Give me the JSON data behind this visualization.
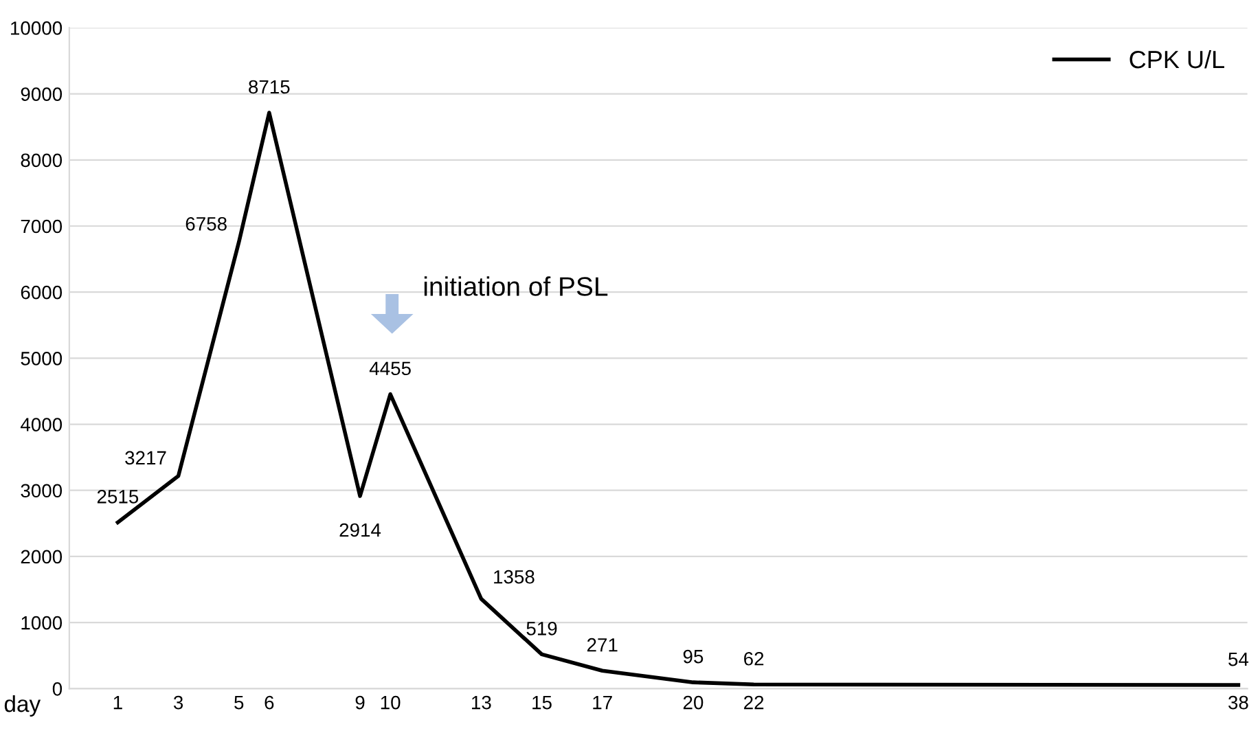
{
  "chart_data": {
    "type": "line",
    "xlabel": "day",
    "x": [
      1,
      3,
      5,
      6,
      9,
      10,
      13,
      15,
      17,
      20,
      22,
      38
    ],
    "series": [
      {
        "name": "CPK U/L",
        "color": "#000000",
        "values": [
          2515,
          3217,
          6758,
          8715,
          2914,
          4455,
          1358,
          519,
          271,
          95,
          62,
          54
        ]
      }
    ],
    "xlim": [
      -0.6,
      38.3
    ],
    "xticks": [
      1,
      3,
      5,
      6,
      9,
      10,
      13,
      15,
      17,
      20,
      22,
      38
    ],
    "ylim": [
      0,
      10000
    ],
    "yticks": [
      0,
      1000,
      2000,
      3000,
      4000,
      5000,
      6000,
      7000,
      8000,
      9000,
      10000
    ],
    "grid": "y",
    "legend": "top right",
    "marker": "none",
    "line_style": "solid",
    "data_labels": true,
    "annotations": [
      "initiation of PSL"
    ]
  }
}
